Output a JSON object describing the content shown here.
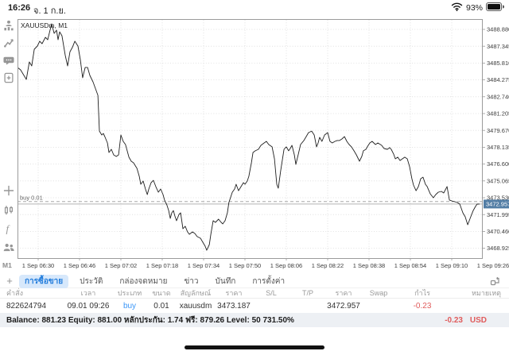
{
  "colors": {
    "accent_blue": "#1f7bdc",
    "buy_blue": "#3b96f7",
    "loss_red": "#e05c5c",
    "price_box_blue": "#537ea5",
    "grid": "#d9d9d9",
    "line": "#1f1f1f"
  },
  "status_bar": {
    "time": "16:26",
    "date": "จ. 1 ก.ย.",
    "battery": "93%"
  },
  "sidebar": {
    "icons": [
      "quotes",
      "trade",
      "chat",
      "new-order",
      "crosshair",
      "objects-candles",
      "indicator-f",
      "accounts"
    ],
    "timeframe_label": "M1"
  },
  "chart_data": {
    "type": "line",
    "title": "XAUUSDm, M1",
    "symbol": "XAUUSDm",
    "timeframe": "M1",
    "grid": true,
    "axis": {
      "t_min": 0,
      "t_max": 180,
      "price_top": 3489.75,
      "price_bottom": 3468.03
    },
    "y_ticks": [
      3488.88,
      3487.345,
      3485.81,
      3484.275,
      3482.74,
      3481.205,
      3479.67,
      3478.135,
      3476.6,
      3475.065,
      3473.53,
      3471.995,
      3470.46,
      3468.925
    ],
    "x_ticks": [
      {
        "t": 8,
        "label": "1 Sep 06:30"
      },
      {
        "t": 24,
        "label": "1 Sep 06:46"
      },
      {
        "t": 40,
        "label": "1 Sep 07:02"
      },
      {
        "t": 56,
        "label": "1 Sep 07:18"
      },
      {
        "t": 72,
        "label": "1 Sep 07:34"
      },
      {
        "t": 88,
        "label": "1 Sep 07:50"
      },
      {
        "t": 104,
        "label": "1 Sep 08:06"
      },
      {
        "t": 120,
        "label": "1 Sep 08:22"
      },
      {
        "t": 136,
        "label": "1 Sep 08:38"
      },
      {
        "t": 152,
        "label": "1 Sep 08:54"
      },
      {
        "t": 168,
        "label": "1 Sep 09:10"
      },
      {
        "t": 184,
        "label": "1 Sep 09:26"
      }
    ],
    "current_price": 3472.957,
    "position_line": {
      "label": "buy 0.01",
      "price": 3473.187
    },
    "series": [
      [
        0,
        3485.41
      ],
      [
        1.2,
        3485.19
      ],
      [
        2.5,
        3484.68
      ],
      [
        3.4,
        3484.32
      ],
      [
        4.6,
        3485.91
      ],
      [
        5.5,
        3485.55
      ],
      [
        6.5,
        3487.07
      ],
      [
        7.7,
        3487.36
      ],
      [
        8.6,
        3487.8
      ],
      [
        9.5,
        3487.58
      ],
      [
        10.8,
        3488.16
      ],
      [
        11.7,
        3487.94
      ],
      [
        13.2,
        3489.39
      ],
      [
        14.2,
        3488.52
      ],
      [
        15.1,
        3488.81
      ],
      [
        15.7,
        3487.94
      ],
      [
        16.3,
        3488.66
      ],
      [
        17.2,
        3488.3
      ],
      [
        18.5,
        3486.49
      ],
      [
        19.4,
        3485.55
      ],
      [
        20.3,
        3486.85
      ],
      [
        21.2,
        3487.22
      ],
      [
        22.2,
        3487.8
      ],
      [
        23.4,
        3487.36
      ],
      [
        24.3,
        3486.13
      ],
      [
        25.2,
        3484.47
      ],
      [
        26.2,
        3485.41
      ],
      [
        27.1,
        3485.41
      ],
      [
        28,
        3484.68
      ],
      [
        29.2,
        3484.1
      ],
      [
        30.2,
        3483.45
      ],
      [
        31.1,
        3482.87
      ],
      [
        31.7,
        3479.61
      ],
      [
        32.6,
        3479.25
      ],
      [
        33.2,
        3479.4
      ],
      [
        33.8,
        3479.11
      ],
      [
        34.8,
        3478.53
      ],
      [
        35.4,
        3477.66
      ],
      [
        36.3,
        3477.95
      ],
      [
        37.2,
        3477.44
      ],
      [
        38.2,
        3477.3
      ],
      [
        39.1,
        3477.44
      ],
      [
        40,
        3479.25
      ],
      [
        40.9,
        3478.67
      ],
      [
        41.8,
        3478.38
      ],
      [
        43.1,
        3477.23
      ],
      [
        44,
        3476.86
      ],
      [
        44.9,
        3476.72
      ],
      [
        46.2,
        3476.21
      ],
      [
        47.1,
        3475.49
      ],
      [
        47.7,
        3474.76
      ],
      [
        48.6,
        3475.05
      ],
      [
        49.5,
        3474.33
      ],
      [
        50.2,
        3473.82
      ],
      [
        50.8,
        3474.33
      ],
      [
        51.7,
        3474.91
      ],
      [
        52.6,
        3475.12
      ],
      [
        53.5,
        3474.55
      ],
      [
        54.5,
        3474.04
      ],
      [
        55.4,
        3474.33
      ],
      [
        56.3,
        3473.82
      ],
      [
        56.9,
        3473.32
      ],
      [
        57.8,
        3472.88
      ],
      [
        58.5,
        3472.37
      ],
      [
        59.1,
        3471.65
      ],
      [
        59.7,
        3472.16
      ],
      [
        60.3,
        3472.37
      ],
      [
        60.9,
        3471.87
      ],
      [
        61.5,
        3471.44
      ],
      [
        62.5,
        3472.01
      ],
      [
        63.1,
        3472.16
      ],
      [
        64,
        3470.71
      ],
      [
        64.9,
        3470.93
      ],
      [
        65.8,
        3470.42
      ],
      [
        66.5,
        3470.2
      ],
      [
        67.7,
        3470.42
      ],
      [
        68.6,
        3470.28
      ],
      [
        69.5,
        3469.99
      ],
      [
        70.8,
        3469.84
      ],
      [
        71.7,
        3469.48
      ],
      [
        72.6,
        3469.12
      ],
      [
        73.2,
        3468.75
      ],
      [
        74.2,
        3469.26
      ],
      [
        74.8,
        3470.2
      ],
      [
        75.7,
        3471.44
      ],
      [
        76.6,
        3471.29
      ],
      [
        77.8,
        3471.58
      ],
      [
        78.8,
        3471.29
      ],
      [
        79.4,
        3471.15
      ],
      [
        80.3,
        3471.44
      ],
      [
        81.2,
        3472.16
      ],
      [
        81.8,
        3473.1
      ],
      [
        83.1,
        3474.04
      ],
      [
        84,
        3474.33
      ],
      [
        84.6,
        3474.76
      ],
      [
        85.5,
        3474.18
      ],
      [
        86.5,
        3474.55
      ],
      [
        87.4,
        3474.91
      ],
      [
        88,
        3474.76
      ],
      [
        88.9,
        3475.05
      ],
      [
        89.5,
        3475.49
      ],
      [
        90.5,
        3476.72
      ],
      [
        91.1,
        3477.66
      ],
      [
        92,
        3477.81
      ],
      [
        93.2,
        3477.95
      ],
      [
        94.2,
        3478.31
      ],
      [
        95.4,
        3478.53
      ],
      [
        96.3,
        3478.67
      ],
      [
        97.2,
        3478.38
      ],
      [
        98.5,
        3478.17
      ],
      [
        99.4,
        3477.08
      ],
      [
        100.3,
        3474.76
      ],
      [
        100.9,
        3474.4
      ],
      [
        101.8,
        3475.99
      ],
      [
        103.1,
        3477.95
      ],
      [
        104,
        3478.17
      ],
      [
        104.9,
        3477.81
      ],
      [
        105.5,
        3478.02
      ],
      [
        106.2,
        3478.31
      ],
      [
        107.1,
        3477.44
      ],
      [
        107.7,
        3476.57
      ],
      [
        108.6,
        3477.44
      ],
      [
        109.5,
        3478.38
      ],
      [
        110.8,
        3478.75
      ],
      [
        111.7,
        3479.11
      ],
      [
        112.6,
        3479.47
      ],
      [
        113.8,
        3479.61
      ],
      [
        114.8,
        3479.25
      ],
      [
        115.7,
        3478.17
      ],
      [
        116.3,
        3478.53
      ],
      [
        116.9,
        3479.04
      ],
      [
        117.8,
        3478.67
      ],
      [
        118.8,
        3479.25
      ],
      [
        120,
        3479.47
      ],
      [
        120.9,
        3478.67
      ],
      [
        121.8,
        3478.53
      ],
      [
        122.8,
        3478.67
      ],
      [
        123.7,
        3478.75
      ],
      [
        124.6,
        3478.75
      ],
      [
        125.5,
        3478.89
      ],
      [
        126.5,
        3479.11
      ],
      [
        127.4,
        3478.67
      ],
      [
        128.3,
        3478.38
      ],
      [
        129.2,
        3478.17
      ],
      [
        130.2,
        3477.81
      ],
      [
        131.1,
        3477.44
      ],
      [
        132.3,
        3476.86
      ],
      [
        133.2,
        3477.3
      ],
      [
        133.8,
        3477.81
      ],
      [
        134.8,
        3477.95
      ],
      [
        135.7,
        3478.31
      ],
      [
        136.3,
        3478.53
      ],
      [
        137.2,
        3478.67
      ],
      [
        138.5,
        3478.38
      ],
      [
        139.4,
        3478.53
      ],
      [
        140.9,
        3478.31
      ],
      [
        141.8,
        3478.02
      ],
      [
        143.1,
        3477.95
      ],
      [
        144,
        3478.1
      ],
      [
        144.6,
        3477.95
      ],
      [
        145.5,
        3477.52
      ],
      [
        146.2,
        3477.08
      ],
      [
        147.1,
        3477.23
      ],
      [
        148,
        3476.93
      ],
      [
        148.9,
        3477.08
      ],
      [
        149.8,
        3477.23
      ],
      [
        150.8,
        3477.08
      ],
      [
        151.7,
        3476.36
      ],
      [
        152.6,
        3475.27
      ],
      [
        153.2,
        3474.69
      ],
      [
        154.2,
        3474.18
      ],
      [
        155.1,
        3474.55
      ],
      [
        156,
        3475.27
      ],
      [
        156.9,
        3475.41
      ],
      [
        157.8,
        3474.76
      ],
      [
        158.5,
        3474.55
      ],
      [
        159.7,
        3473.89
      ],
      [
        160.9,
        3473.53
      ],
      [
        161.8,
        3473.82
      ],
      [
        162.8,
        3474.04
      ],
      [
        164,
        3474.11
      ],
      [
        164.9,
        3473.97
      ],
      [
        166.2,
        3474.55
      ],
      [
        167.1,
        3473.32
      ],
      [
        168,
        3473.24
      ],
      [
        169.2,
        3473.17
      ],
      [
        170.2,
        3473.1
      ],
      [
        171.1,
        3472.95
      ],
      [
        172.3,
        3472.16
      ],
      [
        173.2,
        3471.8
      ],
      [
        174.2,
        3471.07
      ],
      [
        175.1,
        3471.65
      ],
      [
        176.3,
        3472.37
      ],
      [
        177.2,
        3472.74
      ],
      [
        177.8,
        3472.95
      ],
      [
        178.8,
        3472.96
      ]
    ]
  },
  "tabs": {
    "add_label": "+",
    "active_index": 0,
    "items": [
      "การซื้อขาย",
      "ประวัติ",
      "กล่องจดหมาย",
      "ข่าว",
      "บันทึก",
      "การตั้งค่า"
    ]
  },
  "positions_table": {
    "headers": [
      "คำสั่ง",
      "เวลา",
      "ประเภท",
      "ขนาด",
      "สัญลักษณ์",
      "ราคา",
      "S/L",
      "T/P",
      "ราคา",
      "Swap",
      "กำไร",
      "หมายเหตุ"
    ],
    "row": [
      "822624794",
      "09.01 09:26",
      "buy",
      "0.01",
      "xauusdm",
      "3473.187",
      "",
      "",
      "3472.957",
      "",
      "-0.23",
      ""
    ]
  },
  "account_bar": {
    "summary": "Balance: 881.23 Equity: 881.00 หลักประกัน: 1.74 ฟรี: 879.26 Level: 50 731.50%",
    "profit": "-0.23",
    "currency": "USD"
  }
}
